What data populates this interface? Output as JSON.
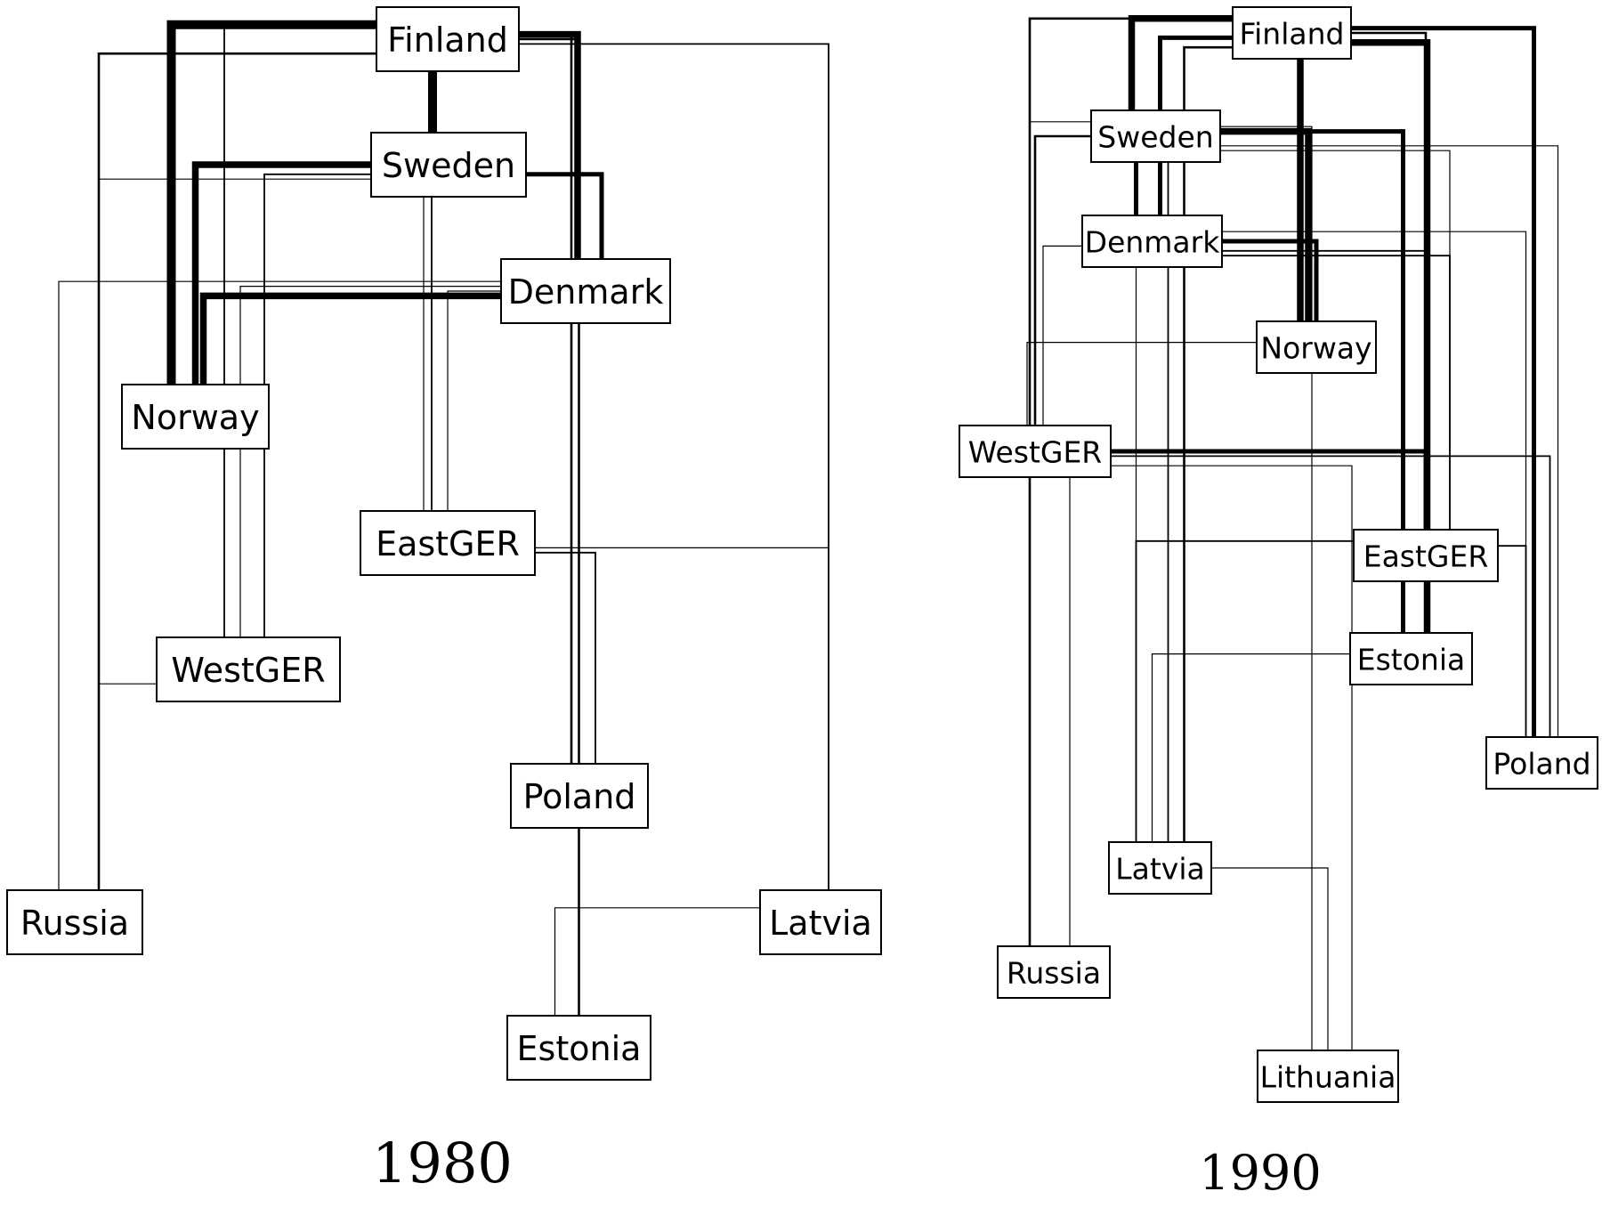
{
  "colors": {
    "ink": "#000000",
    "paper": "#ffffff",
    "thin_edge": "#888888"
  },
  "panels": [
    {
      "caption": "1980",
      "nodes": {
        "finland": "Finland",
        "sweden": "Sweden",
        "denmark": "Denmark",
        "norway": "Norway",
        "eastger": "EastGER",
        "westger": "WestGER",
        "poland": "Poland",
        "russia": "Russia",
        "latvia": "Latvia",
        "estonia": "Estonia"
      },
      "edges": [
        {
          "from": "finland",
          "to": "norway",
          "strength": 4
        },
        {
          "from": "finland",
          "to": "sweden",
          "strength": 4
        },
        {
          "from": "finland",
          "to": "denmark",
          "strength": 3
        },
        {
          "from": "sweden",
          "to": "norway",
          "strength": 3
        },
        {
          "from": "denmark",
          "to": "norway",
          "strength": 3
        },
        {
          "from": "sweden",
          "to": "denmark",
          "strength": 2
        },
        {
          "from": "finland",
          "to": "russia",
          "strength": 1
        },
        {
          "from": "finland",
          "to": "westger",
          "strength": 0
        },
        {
          "from": "finland",
          "to": "eastger",
          "strength": 0
        },
        {
          "from": "finland",
          "to": "poland",
          "strength": 1
        },
        {
          "from": "finland",
          "to": "estonia",
          "strength": 1
        },
        {
          "from": "finland",
          "to": "latvia",
          "strength": 0
        },
        {
          "from": "sweden",
          "to": "westger",
          "strength": 0
        },
        {
          "from": "sweden",
          "to": "russia",
          "strength": -1
        },
        {
          "from": "sweden",
          "to": "eastger",
          "strength": -1
        },
        {
          "from": "denmark",
          "to": "russia",
          "strength": -1
        },
        {
          "from": "denmark",
          "to": "westger",
          "strength": -1
        },
        {
          "from": "denmark",
          "to": "eastger",
          "strength": -1
        },
        {
          "from": "eastger",
          "to": "latvia",
          "strength": -1
        },
        {
          "from": "eastger",
          "to": "poland",
          "strength": 0
        },
        {
          "from": "westger",
          "to": "russia",
          "strength": -1
        },
        {
          "from": "latvia",
          "to": "estonia",
          "strength": -1
        }
      ]
    },
    {
      "caption": "1990",
      "nodes": {
        "finland": "Finland",
        "sweden": "Sweden",
        "denmark": "Denmark",
        "norway": "Norway",
        "westger": "WestGER",
        "eastger": "EastGER",
        "estonia": "Estonia",
        "poland": "Poland",
        "latvia": "Latvia",
        "russia": "Russia",
        "lithuania": "Lithuania"
      },
      "edges": [
        {
          "from": "finland",
          "to": "sweden",
          "strength": 3
        },
        {
          "from": "finland",
          "to": "norway",
          "strength": 3
        },
        {
          "from": "finland",
          "to": "poland",
          "strength": 2
        },
        {
          "from": "finland",
          "to": "eastger",
          "strength": 1
        },
        {
          "from": "finland",
          "to": "denmark",
          "strength": 2
        },
        {
          "from": "finland",
          "to": "estonia",
          "strength": 3
        },
        {
          "from": "finland",
          "to": "latvia",
          "strength": 1
        },
        {
          "from": "finland",
          "to": "russia",
          "strength": 1
        },
        {
          "from": "sweden",
          "to": "denmark",
          "strength": 2
        },
        {
          "from": "sweden",
          "to": "norway",
          "strength": 3
        },
        {
          "from": "sweden",
          "to": "westger",
          "strength": 1
        },
        {
          "from": "sweden",
          "to": "latvia",
          "strength": 0
        },
        {
          "from": "sweden",
          "to": "poland",
          "strength": -1
        },
        {
          "from": "sweden",
          "to": "eastger",
          "strength": -1
        },
        {
          "from": "sweden",
          "to": "russia",
          "strength": -1
        },
        {
          "from": "sweden",
          "to": "lithuania",
          "strength": -1
        },
        {
          "from": "sweden",
          "to": "estonia",
          "strength": 2
        },
        {
          "from": "denmark",
          "to": "norway",
          "strength": 2
        },
        {
          "from": "denmark",
          "to": "westger",
          "strength": -1
        },
        {
          "from": "denmark",
          "to": "estonia",
          "strength": 0
        },
        {
          "from": "denmark",
          "to": "eastger",
          "strength": 0
        },
        {
          "from": "denmark",
          "to": "latvia",
          "strength": -1
        },
        {
          "from": "denmark",
          "to": "poland",
          "strength": -1
        },
        {
          "from": "norway",
          "to": "westger",
          "strength": -1
        },
        {
          "from": "westger",
          "to": "eastger",
          "strength": 2
        },
        {
          "from": "westger",
          "to": "poland",
          "strength": 0
        },
        {
          "from": "westger",
          "to": "russia",
          "strength": -1
        },
        {
          "from": "westger",
          "to": "lithuania",
          "strength": -1
        },
        {
          "from": "eastger",
          "to": "latvia",
          "strength": 0
        },
        {
          "from": "eastger",
          "to": "poland",
          "strength": 0
        },
        {
          "from": "estonia",
          "to": "latvia",
          "strength": -1
        },
        {
          "from": "latvia",
          "to": "lithuania",
          "strength": -1
        }
      ]
    }
  ]
}
